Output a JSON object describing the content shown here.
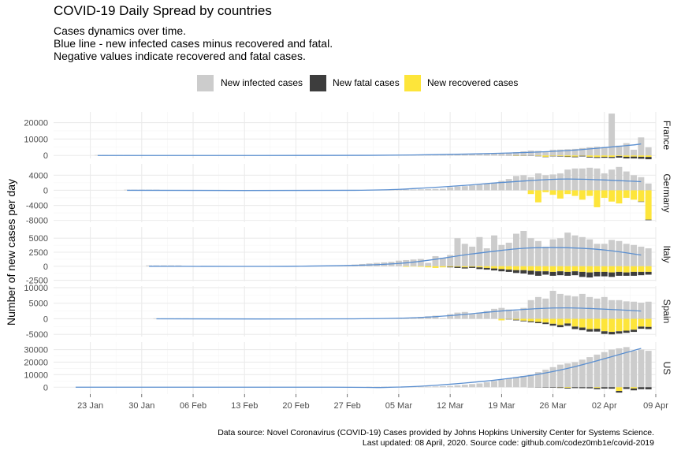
{
  "title": "COVID-19 Daily Spread by countries",
  "subtitle": [
    "Cases dynamics over time.",
    "Blue line - new infected cases minus recovered and fatal.",
    "Negative values indicate recovered and fatal cases."
  ],
  "caption": [
    "Data source: Novel Coronavirus (COVID-19) Cases provided by Johns Hopkins University Center for Systems Science.",
    "Last updated: 08 April, 2020. Source code: github.com/codez0mb1e/covid-2019"
  ],
  "colors": {
    "infected": "#cccccc",
    "fatal": "#3d3d3d",
    "recovered": "#fde53a",
    "trend": "#5b8fd0",
    "grid_major": "#ebebeb",
    "grid_minor": "#f5f5f5"
  },
  "chart_data": {
    "type": "bar",
    "stacked": true,
    "ylabel": "Number of new cases per day",
    "xlabel": "",
    "x_axis": {
      "type": "date",
      "range": [
        "2020-01-18",
        "2020-04-09"
      ],
      "ticks": [
        {
          "date": "2020-01-23",
          "label": "23 Jan"
        },
        {
          "date": "2020-01-30",
          "label": "30 Jan"
        },
        {
          "date": "2020-02-06",
          "label": "06 Feb"
        },
        {
          "date": "2020-02-13",
          "label": "13 Feb"
        },
        {
          "date": "2020-02-20",
          "label": "20 Feb"
        },
        {
          "date": "2020-02-27",
          "label": "27 Feb"
        },
        {
          "date": "2020-03-05",
          "label": "05 Mar"
        },
        {
          "date": "2020-03-12",
          "label": "12 Mar"
        },
        {
          "date": "2020-03-19",
          "label": "19 Mar"
        },
        {
          "date": "2020-03-26",
          "label": "26 Mar"
        },
        {
          "date": "2020-04-02",
          "label": "02 Apr"
        },
        {
          "date": "2020-04-09",
          "label": "09 Apr"
        }
      ]
    },
    "legend": {
      "placement": "top",
      "items": [
        {
          "key": "infected",
          "label": "New infected cases"
        },
        {
          "key": "fatal",
          "label": "New fatal cases"
        },
        {
          "key": "recovered",
          "label": "New recovered cases"
        }
      ]
    },
    "facets": [
      {
        "country": "France",
        "ylim": [
          -1800,
          26500
        ],
        "yticks": [
          0,
          10000,
          20000
        ],
        "first_date": "2020-01-24",
        "infected_map": {
          "2020-01-24": 100,
          "2020-01-25": 100,
          "2020-01-26": 100,
          "2020-01-27": 100,
          "2020-01-28": 100
        },
        "infected_recent": {
          "start": "2020-03-01",
          "values": [
            30,
            50,
            60,
            80,
            100,
            140,
            180,
            200,
            280,
            300,
            350,
            500,
            650,
            800,
            900,
            1000,
            1100,
            1200,
            1500,
            1700,
            2000,
            2500,
            3000,
            2800,
            2500,
            3500,
            3600,
            3800,
            4000,
            4500,
            5000,
            5400,
            5200,
            25500,
            6000,
            7500,
            3500,
            11000,
            5000
          ]
        },
        "fatal_recent": {
          "start": "2020-03-01",
          "values": [
            0,
            0,
            0,
            0,
            0,
            0,
            0,
            0,
            0,
            0,
            0,
            0,
            0,
            0,
            0,
            0,
            20,
            20,
            50,
            80,
            100,
            120,
            150,
            180,
            200,
            230,
            250,
            300,
            380,
            400,
            450,
            500,
            600,
            650,
            900,
            1000,
            1100,
            1200,
            1400
          ]
        },
        "recovered_recent": {
          "start": "2020-03-01",
          "values": [
            0,
            0,
            0,
            0,
            0,
            0,
            0,
            0,
            0,
            0,
            0,
            0,
            0,
            0,
            0,
            0,
            0,
            0,
            0,
            0,
            200,
            100,
            0,
            300,
            800,
            300,
            400,
            600,
            700,
            200,
            800,
            1000,
            800,
            900,
            400,
            800,
            700,
            800,
            900
          ]
        },
        "trend": [
          [
            "2020-01-24",
            0
          ],
          [
            "2020-02-15",
            0
          ],
          [
            "2020-03-01",
            100
          ],
          [
            "2020-03-10",
            500
          ],
          [
            "2020-03-20",
            1500
          ],
          [
            "2020-03-28",
            3000
          ],
          [
            "2020-04-05",
            6000
          ],
          [
            "2020-04-07",
            7000
          ]
        ]
      },
      {
        "country": "Germany",
        "ylim": [
          -8500,
          7000
        ],
        "yticks": [
          -8000,
          -4000,
          0,
          4000
        ],
        "first_date": "2020-01-28",
        "infected_map": {
          "2020-01-28": 150,
          "2020-01-29": 150,
          "2020-01-30": 150,
          "2020-01-31": 150,
          "2020-02-01": 150
        },
        "infected_recent": {
          "start": "2020-03-01",
          "values": [
            30,
            50,
            70,
            100,
            140,
            180,
            200,
            250,
            300,
            350,
            400,
            800,
            1000,
            1100,
            1300,
            1500,
            1800,
            2000,
            2500,
            3000,
            3800,
            4000,
            3500,
            4500,
            4000,
            4200,
            4500,
            5500,
            5800,
            5800,
            6000,
            5800,
            4500,
            5500,
            6200,
            5000,
            4000,
            3500,
            1800
          ]
        },
        "fatal_recent": {
          "start": "2020-03-01",
          "values": [
            0,
            0,
            0,
            0,
            0,
            0,
            0,
            0,
            0,
            0,
            0,
            0,
            0,
            0,
            0,
            0,
            0,
            0,
            0,
            0,
            0,
            0,
            0,
            0,
            0,
            0,
            0,
            0,
            0,
            0,
            0,
            0,
            0,
            0,
            0,
            0,
            0,
            100,
            150
          ]
        },
        "recovered_recent": {
          "start": "2020-03-01",
          "values": [
            0,
            0,
            0,
            0,
            0,
            0,
            0,
            0,
            0,
            0,
            0,
            0,
            0,
            0,
            0,
            0,
            0,
            0,
            0,
            0,
            0,
            0,
            1000,
            3200,
            500,
            1200,
            2200,
            1000,
            1500,
            2500,
            1500,
            4500,
            2000,
            3000,
            3500,
            2000,
            2500,
            3000,
            7800
          ]
        },
        "trend": [
          [
            "2020-01-28",
            0
          ],
          [
            "2020-02-28",
            0
          ],
          [
            "2020-03-10",
            800
          ],
          [
            "2020-03-20",
            2200
          ],
          [
            "2020-03-28",
            3000
          ],
          [
            "2020-04-07",
            2300
          ]
        ]
      },
      {
        "country": "Italy",
        "ylim": [
          -2700,
          7000
        ],
        "yticks": [
          -2500,
          0,
          2500,
          5000
        ],
        "first_date": "2020-01-31",
        "infected_map": {
          "2020-01-31": 150,
          "2020-02-01": 150,
          "2020-02-02": 150,
          "2020-02-03": 150,
          "2020-02-04": 150
        },
        "infected_recent": {
          "start": "2020-02-22",
          "values": [
            80,
            50,
            80,
            100,
            150,
            200,
            300,
            400,
            500,
            600,
            700,
            800,
            1000,
            1100,
            1200,
            1300,
            600,
            1800,
            1500,
            2000,
            5000,
            4000,
            3500,
            5200,
            3200,
            5500,
            3800,
            4200,
            5800,
            6300,
            5000,
            4500,
            3500,
            4800,
            5000,
            6000,
            5500,
            5200,
            4800,
            4000,
            4000,
            4700,
            4500,
            4000,
            3800,
            3500,
            3200,
            2300
          ]
        },
        "fatal_recent": {
          "start": "2020-02-22",
          "values": [
            0,
            0,
            0,
            0,
            0,
            0,
            0,
            0,
            0,
            0,
            0,
            0,
            0,
            0,
            0,
            0,
            0,
            0,
            0,
            100,
            200,
            200,
            200,
            300,
            300,
            350,
            400,
            400,
            500,
            600,
            700,
            800,
            600,
            700,
            700,
            700,
            700,
            900,
            900,
            800,
            800,
            800,
            700,
            600,
            700,
            600,
            500,
            600
          ]
        },
        "recovered_recent": {
          "start": "2020-02-22",
          "values": [
            0,
            0,
            0,
            0,
            0,
            0,
            0,
            0,
            0,
            0,
            0,
            0,
            0,
            100,
            50,
            100,
            200,
            300,
            200,
            100,
            100,
            200,
            100,
            200,
            300,
            400,
            500,
            600,
            700,
            700,
            800,
            900,
            900,
            1000,
            900,
            1000,
            900,
            1000,
            1100,
            1000,
            1000,
            1100,
            1000,
            1100,
            1000,
            1000,
            1000,
            1000
          ]
        },
        "trend": [
          [
            "2020-01-31",
            0
          ],
          [
            "2020-02-20",
            0
          ],
          [
            "2020-03-05",
            500
          ],
          [
            "2020-03-15",
            2200
          ],
          [
            "2020-03-22",
            3200
          ],
          [
            "2020-03-28",
            3300
          ],
          [
            "2020-04-02",
            2900
          ],
          [
            "2020-04-07",
            2000
          ]
        ]
      },
      {
        "country": "Spain",
        "ylim": [
          -5700,
          10500
        ],
        "yticks": [
          -5000,
          0,
          5000,
          10000
        ],
        "first_date": "2020-02-01",
        "infected_map": {
          "2020-02-01": 80,
          "2020-02-02": 80,
          "2020-02-03": 80,
          "2020-02-04": 80,
          "2020-02-05": 80
        },
        "infected_recent": {
          "start": "2020-03-01",
          "values": [
            50,
            80,
            100,
            150,
            200,
            300,
            400,
            600,
            800,
            1000,
            200,
            1500,
            2000,
            2200,
            1500,
            2000,
            2500,
            3200,
            3500,
            3000,
            2500,
            3500,
            6000,
            7000,
            6500,
            9000,
            8000,
            7500,
            7200,
            8000,
            7000,
            6500,
            7000,
            6000,
            6000,
            5600,
            5500,
            5200,
            5500
          ]
        },
        "fatal_recent": {
          "start": "2020-03-01",
          "values": [
            0,
            0,
            0,
            0,
            0,
            0,
            0,
            0,
            0,
            0,
            0,
            0,
            0,
            0,
            0,
            0,
            0,
            0,
            0,
            100,
            200,
            200,
            300,
            400,
            500,
            600,
            700,
            750,
            800,
            850,
            800,
            900,
            850,
            800,
            750,
            700,
            700,
            700,
            700
          ]
        },
        "recovered_recent": {
          "start": "2020-03-01",
          "values": [
            0,
            0,
            0,
            0,
            0,
            0,
            0,
            0,
            0,
            0,
            0,
            0,
            0,
            0,
            0,
            0,
            0,
            0,
            500,
            100,
            300,
            600,
            800,
            1000,
            1200,
            1600,
            2000,
            1500,
            2500,
            2800,
            3300,
            3200,
            4000,
            4200,
            4000,
            3800,
            3500,
            2500,
            2600
          ]
        },
        "trend": [
          [
            "2020-02-01",
            0
          ],
          [
            "2020-02-28",
            0
          ],
          [
            "2020-03-10",
            700
          ],
          [
            "2020-03-20",
            2700
          ],
          [
            "2020-03-28",
            3500
          ],
          [
            "2020-04-07",
            2500
          ]
        ]
      },
      {
        "country": "US",
        "ylim": [
          -5500,
          36000
        ],
        "yticks": [
          0,
          10000,
          20000,
          30000
        ],
        "first_date": "2020-01-21",
        "infected_map": {},
        "infected_recent": {
          "start": "2020-03-01",
          "values": [
            20,
            30,
            50,
            80,
            100,
            150,
            200,
            300,
            500,
            600,
            800,
            1000,
            1500,
            2000,
            2500,
            3000,
            4000,
            5000,
            6000,
            7000,
            8000,
            9000,
            10000,
            12000,
            14000,
            16000,
            18000,
            19000,
            20000,
            22000,
            24000,
            26000,
            28000,
            30000,
            31000,
            32000,
            29000,
            30000,
            29000
          ]
        },
        "fatal_recent": {
          "start": "2020-03-01",
          "values": [
            0,
            0,
            0,
            0,
            0,
            0,
            0,
            0,
            0,
            0,
            0,
            0,
            0,
            0,
            0,
            0,
            0,
            0,
            0,
            0,
            0,
            0,
            100,
            200,
            300,
            400,
            500,
            600,
            700,
            800,
            900,
            1000,
            1100,
            1200,
            1300,
            1400,
            1500,
            1600,
            1700
          ]
        },
        "recovered_recent": {
          "start": "2020-03-01",
          "values": [
            0,
            0,
            0,
            0,
            0,
            0,
            0,
            0,
            0,
            0,
            0,
            0,
            0,
            0,
            0,
            0,
            0,
            0,
            0,
            0,
            0,
            0,
            0,
            0,
            0,
            0,
            100,
            500,
            0,
            0,
            0,
            600,
            0,
            0,
            3000,
            0,
            1000,
            0,
            0
          ]
        },
        "trend": [
          [
            "2020-01-21",
            0
          ],
          [
            "2020-02-25",
            0
          ],
          [
            "2020-03-03",
            -200
          ],
          [
            "2020-03-10",
            1500
          ],
          [
            "2020-03-20",
            7000
          ],
          [
            "2020-03-28",
            15000
          ],
          [
            "2020-04-07",
            31000
          ]
        ]
      }
    ]
  }
}
